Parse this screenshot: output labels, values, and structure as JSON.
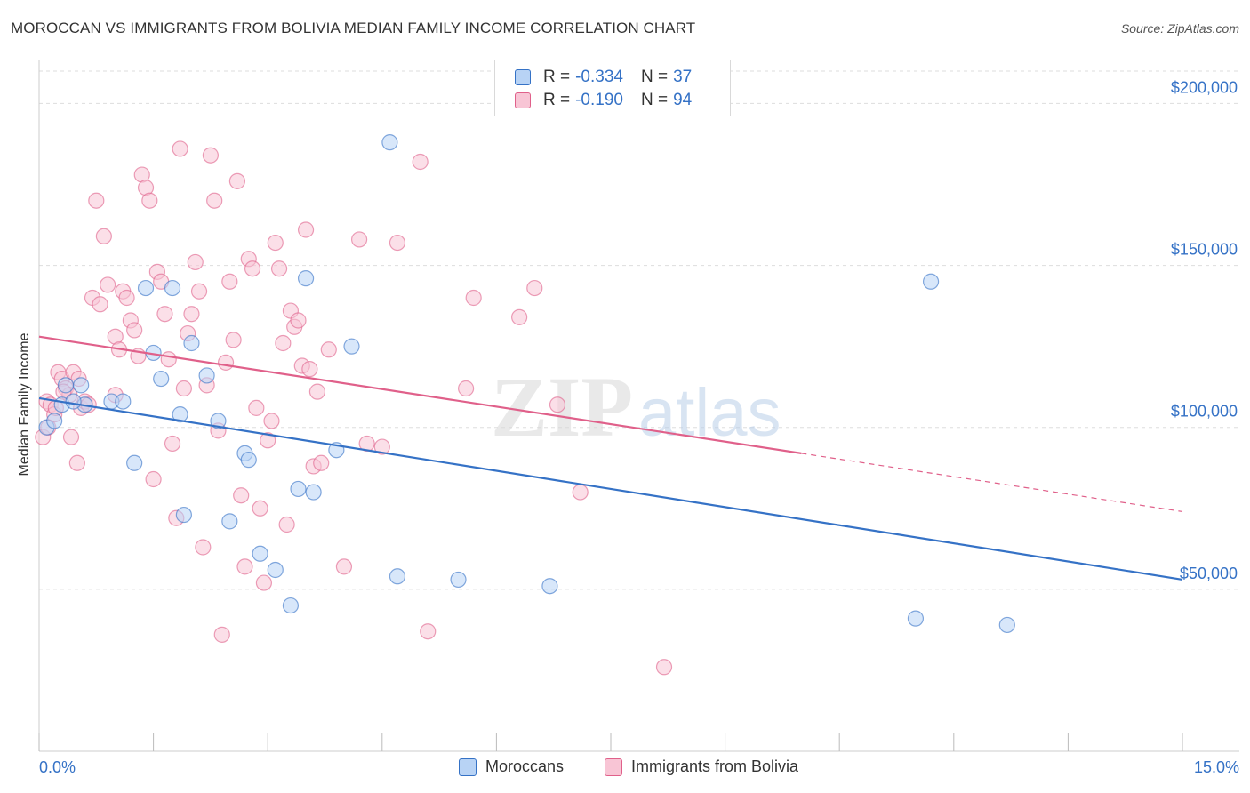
{
  "title": "MOROCCAN VS IMMIGRANTS FROM BOLIVIA MEDIAN FAMILY INCOME CORRELATION CHART",
  "source": "Source: ZipAtlas.com",
  "watermark": {
    "zip": "ZIP",
    "atlas": "atlas"
  },
  "colors": {
    "blue": "#3572c6",
    "pink": "#e0608a",
    "blue_fill": "#b8d3f5",
    "pink_fill": "#f8c5d5",
    "grid": "#dddddd",
    "axis_text": "#3572c6"
  },
  "legend": {
    "r_label": "R =",
    "n_label": "N =",
    "rows": [
      {
        "series": "Moroccans",
        "r": "-0.334",
        "n": "37"
      },
      {
        "series": "Immigrants from Bolivia",
        "r": "-0.190",
        "n": "94"
      }
    ]
  },
  "chart_data": {
    "type": "scatter",
    "title": "MOROCCAN VS IMMIGRANTS FROM BOLIVIA MEDIAN FAMILY INCOME CORRELATION CHART",
    "xlabel": "",
    "ylabel": "Median Family Income",
    "xlim": [
      0,
      15
    ],
    "ylim": [
      0,
      210000
    ],
    "x_tick_labels": [
      "0.0%",
      "15.0%"
    ],
    "y_ticks": [
      50000,
      100000,
      150000,
      200000
    ],
    "y_tick_labels": [
      "$50,000",
      "$100,000",
      "$150,000",
      "$200,000"
    ],
    "legend_position": "top-center",
    "series": [
      {
        "name": "Moroccans",
        "color": "#3572c6",
        "points": [
          [
            0.1,
            100000
          ],
          [
            0.3,
            107000
          ],
          [
            0.35,
            113000
          ],
          [
            0.55,
            113000
          ],
          [
            0.6,
            107000
          ],
          [
            0.95,
            108000
          ],
          [
            1.1,
            108000
          ],
          [
            1.25,
            89000
          ],
          [
            1.4,
            143000
          ],
          [
            1.5,
            123000
          ],
          [
            1.6,
            115000
          ],
          [
            1.75,
            143000
          ],
          [
            1.85,
            104000
          ],
          [
            2.0,
            126000
          ],
          [
            2.2,
            116000
          ],
          [
            2.35,
            102000
          ],
          [
            2.7,
            92000
          ],
          [
            2.75,
            90000
          ],
          [
            1.9,
            73000
          ],
          [
            2.5,
            71000
          ],
          [
            2.9,
            61000
          ],
          [
            3.1,
            56000
          ],
          [
            3.3,
            45000
          ],
          [
            3.5,
            146000
          ],
          [
            3.4,
            81000
          ],
          [
            3.6,
            80000
          ],
          [
            3.9,
            93000
          ],
          [
            4.1,
            125000
          ],
          [
            4.6,
            188000
          ],
          [
            4.7,
            54000
          ],
          [
            5.5,
            53000
          ],
          [
            6.7,
            51000
          ],
          [
            11.7,
            145000
          ],
          [
            11.5,
            41000
          ],
          [
            12.7,
            39000
          ],
          [
            0.2,
            102000
          ],
          [
            0.45,
            108000
          ]
        ],
        "trend": {
          "x0": 0,
          "y0": 109000,
          "x1": 15,
          "y1": 53000
        }
      },
      {
        "name": "Immigrants from Bolivia",
        "color": "#e0608a",
        "points": [
          [
            0.05,
            97000
          ],
          [
            0.1,
            108000
          ],
          [
            0.15,
            107000
          ],
          [
            0.2,
            104000
          ],
          [
            0.25,
            117000
          ],
          [
            0.3,
            115000
          ],
          [
            0.35,
            112000
          ],
          [
            0.4,
            110000
          ],
          [
            0.45,
            117000
          ],
          [
            0.5,
            89000
          ],
          [
            0.55,
            106000
          ],
          [
            0.6,
            108000
          ],
          [
            0.65,
            107000
          ],
          [
            0.7,
            140000
          ],
          [
            0.75,
            170000
          ],
          [
            0.8,
            138000
          ],
          [
            0.85,
            159000
          ],
          [
            0.9,
            144000
          ],
          [
            1.0,
            128000
          ],
          [
            1.05,
            124000
          ],
          [
            1.1,
            142000
          ],
          [
            1.15,
            140000
          ],
          [
            1.2,
            133000
          ],
          [
            1.25,
            130000
          ],
          [
            1.3,
            122000
          ],
          [
            1.35,
            178000
          ],
          [
            1.4,
            174000
          ],
          [
            1.45,
            170000
          ],
          [
            1.5,
            84000
          ],
          [
            1.55,
            148000
          ],
          [
            1.6,
            145000
          ],
          [
            1.65,
            135000
          ],
          [
            1.7,
            121000
          ],
          [
            1.75,
            95000
          ],
          [
            1.8,
            72000
          ],
          [
            1.85,
            186000
          ],
          [
            1.9,
            112000
          ],
          [
            1.95,
            129000
          ],
          [
            2.0,
            135000
          ],
          [
            2.05,
            151000
          ],
          [
            2.1,
            142000
          ],
          [
            2.15,
            63000
          ],
          [
            2.2,
            113000
          ],
          [
            2.25,
            184000
          ],
          [
            2.3,
            170000
          ],
          [
            2.35,
            99000
          ],
          [
            2.4,
            36000
          ],
          [
            2.45,
            120000
          ],
          [
            2.5,
            145000
          ],
          [
            2.55,
            127000
          ],
          [
            2.6,
            176000
          ],
          [
            2.65,
            79000
          ],
          [
            2.7,
            57000
          ],
          [
            2.75,
            152000
          ],
          [
            2.8,
            149000
          ],
          [
            2.85,
            106000
          ],
          [
            2.9,
            75000
          ],
          [
            2.95,
            52000
          ],
          [
            3.0,
            96000
          ],
          [
            3.05,
            102000
          ],
          [
            3.1,
            157000
          ],
          [
            3.15,
            149000
          ],
          [
            3.2,
            126000
          ],
          [
            3.25,
            70000
          ],
          [
            3.3,
            136000
          ],
          [
            3.35,
            131000
          ],
          [
            3.4,
            133000
          ],
          [
            3.45,
            119000
          ],
          [
            3.5,
            161000
          ],
          [
            3.55,
            118000
          ],
          [
            3.6,
            88000
          ],
          [
            3.65,
            111000
          ],
          [
            3.7,
            89000
          ],
          [
            3.8,
            124000
          ],
          [
            4.0,
            57000
          ],
          [
            4.2,
            158000
          ],
          [
            4.3,
            95000
          ],
          [
            4.5,
            94000
          ],
          [
            4.7,
            157000
          ],
          [
            5.0,
            182000
          ],
          [
            5.1,
            37000
          ],
          [
            5.6,
            112000
          ],
          [
            5.7,
            140000
          ],
          [
            6.3,
            134000
          ],
          [
            6.5,
            143000
          ],
          [
            6.8,
            107000
          ],
          [
            7.1,
            80000
          ],
          [
            8.2,
            26000
          ],
          [
            0.12,
            100000
          ],
          [
            0.22,
            106000
          ],
          [
            0.32,
            111000
          ],
          [
            0.42,
            97000
          ],
          [
            0.52,
            115000
          ],
          [
            1.0,
            110000
          ]
        ],
        "trend": {
          "x0": 0,
          "y0": 128000,
          "x1": 10.0,
          "y1": 92000
        },
        "trend_dashed": {
          "x0": 10.0,
          "y0": 92000,
          "x1": 15,
          "y1": 74000
        }
      }
    ]
  }
}
